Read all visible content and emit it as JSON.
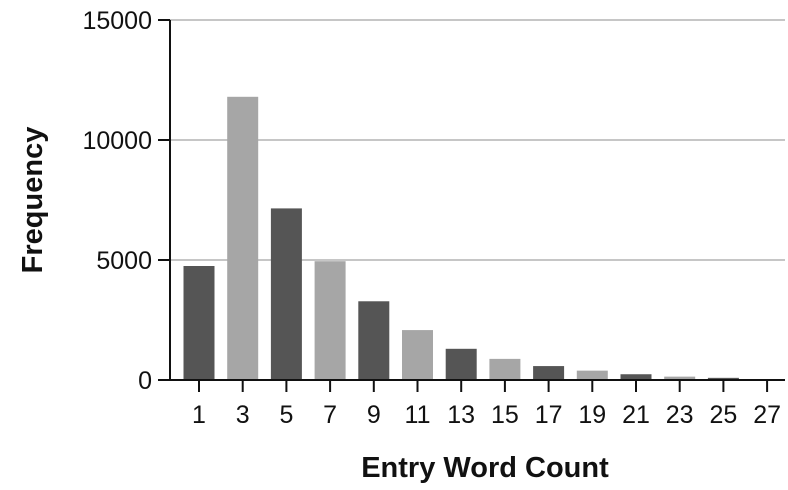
{
  "chart_data": {
    "type": "bar",
    "title": "",
    "xlabel": "Entry Word Count",
    "ylabel": "Frequency",
    "ylim": [
      0,
      15000
    ],
    "yticks": [
      0,
      5000,
      10000,
      15000
    ],
    "ytick_labels": [
      "0",
      "5000",
      "10000",
      "15000"
    ],
    "grid": true,
    "categories": [
      "1",
      "3",
      "5",
      "7",
      "9",
      "11",
      "13",
      "15",
      "17",
      "19",
      "21",
      "23",
      "25",
      "27"
    ],
    "values": [
      4750,
      11800,
      7150,
      4950,
      3280,
      2080,
      1300,
      880,
      580,
      390,
      240,
      140,
      90,
      40
    ],
    "colors": [
      "#555555",
      "#a6a6a6",
      "#555555",
      "#a6a6a6",
      "#555555",
      "#a6a6a6",
      "#555555",
      "#a6a6a6",
      "#555555",
      "#a6a6a6",
      "#555555",
      "#a6a6a6",
      "#555555",
      "#a6a6a6"
    ]
  }
}
